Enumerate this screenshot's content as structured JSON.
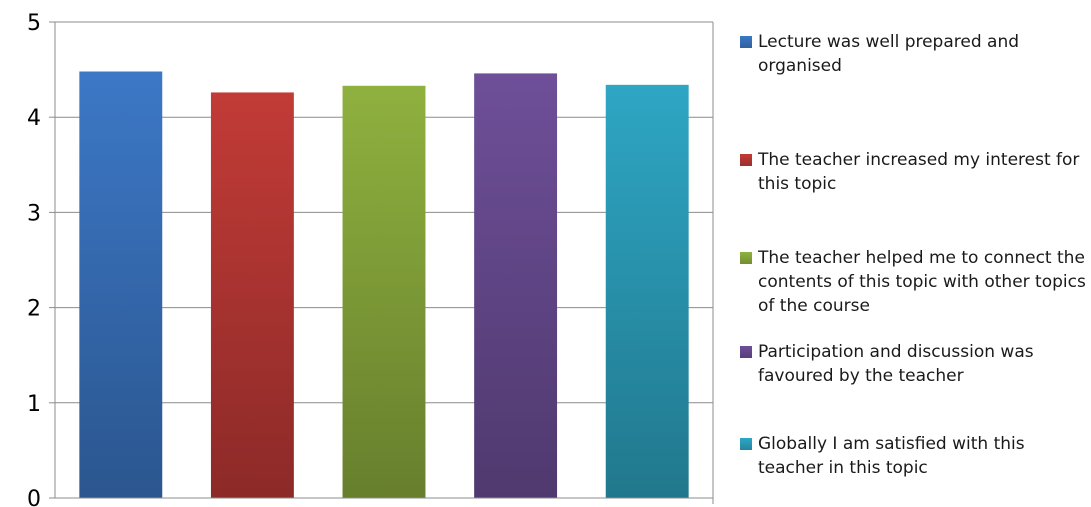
{
  "chart_data": {
    "type": "bar",
    "ylim": [
      0,
      5
    ],
    "yticks": [
      "0",
      "1",
      "2",
      "3",
      "4",
      "5"
    ],
    "grid": true,
    "legend_position": "right",
    "series": [
      {
        "name": "Lecture was well prepared and organised",
        "value": 4.48,
        "color": "#3c78c6"
      },
      {
        "name": "The teacher increased my interest for this topic",
        "value": 4.26,
        "color": "#c23b37"
      },
      {
        "name": "The teacher helped me to connect the contents of this topic with other topics of the course",
        "value": 4.33,
        "color": "#8fb13f"
      },
      {
        "name": "Participation and discussion was favoured by the teacher",
        "value": 4.46,
        "color": "#6e4f99"
      },
      {
        "name": "Globally I am satisfied with this teacher in this topic",
        "value": 4.34,
        "color": "#2ea6c4"
      }
    ]
  }
}
